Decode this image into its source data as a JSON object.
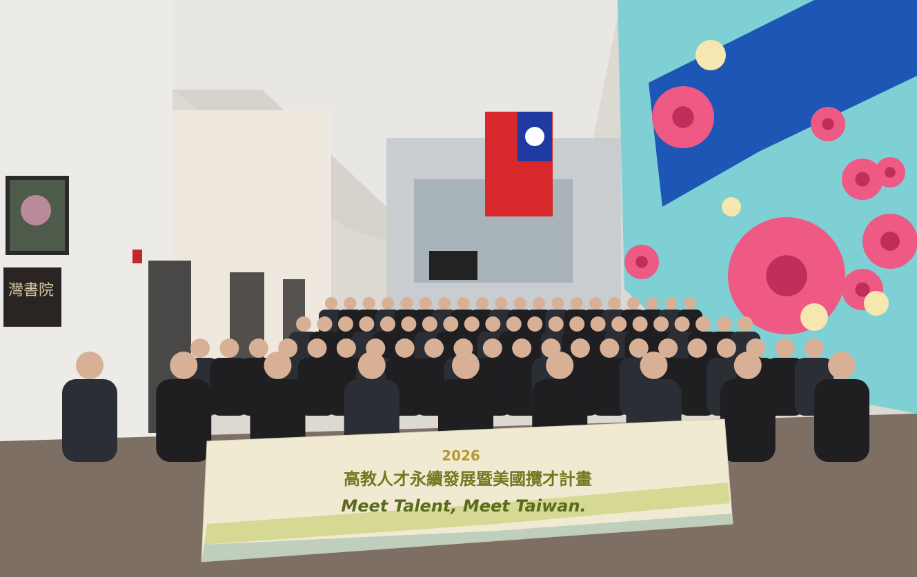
{
  "photo": {
    "wall_sign": {
      "text": "灣書院"
    },
    "banner": {
      "year": "2026",
      "title": "高教人才永續發展暨美國攬才計畫",
      "slogan": "Meet Talent, Meet Taiwan."
    }
  }
}
